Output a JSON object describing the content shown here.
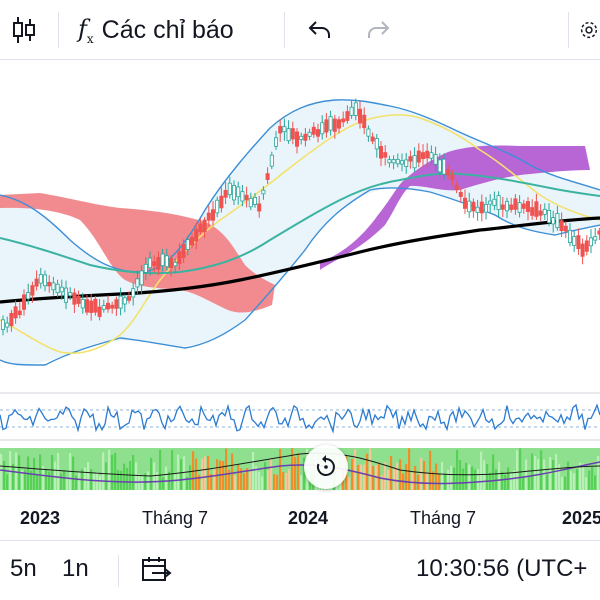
{
  "toolbar": {
    "indicators_label": "Các chỉ báo"
  },
  "axis": {
    "time_labels": [
      "2023",
      "Tháng 7",
      "2024",
      "Tháng 7",
      "2025"
    ]
  },
  "bottombar": {
    "intervals": [
      "5n",
      "1n"
    ],
    "clock": "10:30:56 (UTC+"
  },
  "colors": {
    "cloud_bear": "#f28b8f",
    "cloud_bull": "#b865d6",
    "bollinger": "#3d8fd6",
    "bb_fill": "#eaf4fb",
    "tenkan": "#f2e26b",
    "kijun": "#3bb3a0",
    "ma_long": "#000000",
    "candle_up": "#26a69a",
    "candle_down": "#ef5350",
    "osc_line": "#2b7bd1",
    "hist_green": "#56d156",
    "hist_orange": "#f08c2a"
  }
}
